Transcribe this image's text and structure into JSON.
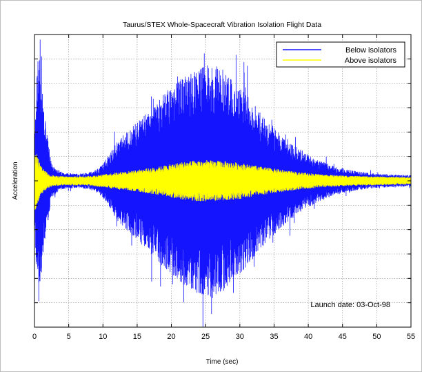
{
  "chart_data": {
    "type": "line",
    "title": "Taurus/STEX Whole-Spacecraft Vibration Isolation Flight Data",
    "xlabel": "Time (sec)",
    "ylabel": "Acceleration",
    "xlim": [
      0,
      55
    ],
    "x_ticks": [
      0,
      5,
      10,
      15,
      20,
      25,
      30,
      35,
      40,
      45,
      50,
      55
    ],
    "y_ticks_labeled": false,
    "y_range_relative": [
      -1,
      1
    ],
    "grid": true,
    "legend_position": "top-right",
    "annotation": "Launch date: 03-Oct-98",
    "series": [
      {
        "name": "Below isolators",
        "color": "#1414ff",
        "envelope": {
          "t": [
            0,
            0.3,
            0.6,
            0.9,
            1.5,
            2.5,
            4,
            6,
            8,
            9,
            10,
            11,
            12,
            14,
            16,
            18,
            20,
            22,
            24,
            25,
            26,
            27,
            28,
            30,
            32,
            34,
            36,
            38,
            40,
            42,
            44,
            46,
            48,
            50,
            52,
            55
          ],
          "amplitude": [
            0.25,
            0.75,
            0.95,
            0.8,
            0.45,
            0.12,
            0.06,
            0.05,
            0.06,
            0.08,
            0.12,
            0.2,
            0.28,
            0.38,
            0.48,
            0.58,
            0.68,
            0.76,
            0.82,
            0.84,
            0.85,
            0.83,
            0.78,
            0.68,
            0.56,
            0.44,
            0.34,
            0.26,
            0.19,
            0.14,
            0.1,
            0.08,
            0.06,
            0.05,
            0.045,
            0.04
          ]
        }
      },
      {
        "name": "Above isolators",
        "color": "#ffff00",
        "envelope": {
          "t": [
            0,
            0.3,
            0.6,
            1,
            2,
            3,
            5,
            8,
            10,
            12,
            14,
            16,
            18,
            20,
            22,
            24,
            25,
            26,
            28,
            30,
            32,
            34,
            36,
            38,
            40,
            42,
            44,
            46,
            48,
            50,
            52,
            55
          ],
          "amplitude": [
            0.22,
            0.2,
            0.15,
            0.1,
            0.05,
            0.035,
            0.03,
            0.035,
            0.045,
            0.06,
            0.07,
            0.085,
            0.1,
            0.12,
            0.14,
            0.145,
            0.15,
            0.145,
            0.14,
            0.13,
            0.11,
            0.095,
            0.08,
            0.065,
            0.055,
            0.045,
            0.04,
            0.035,
            0.032,
            0.03,
            0.028,
            0.025
          ]
        }
      }
    ]
  }
}
